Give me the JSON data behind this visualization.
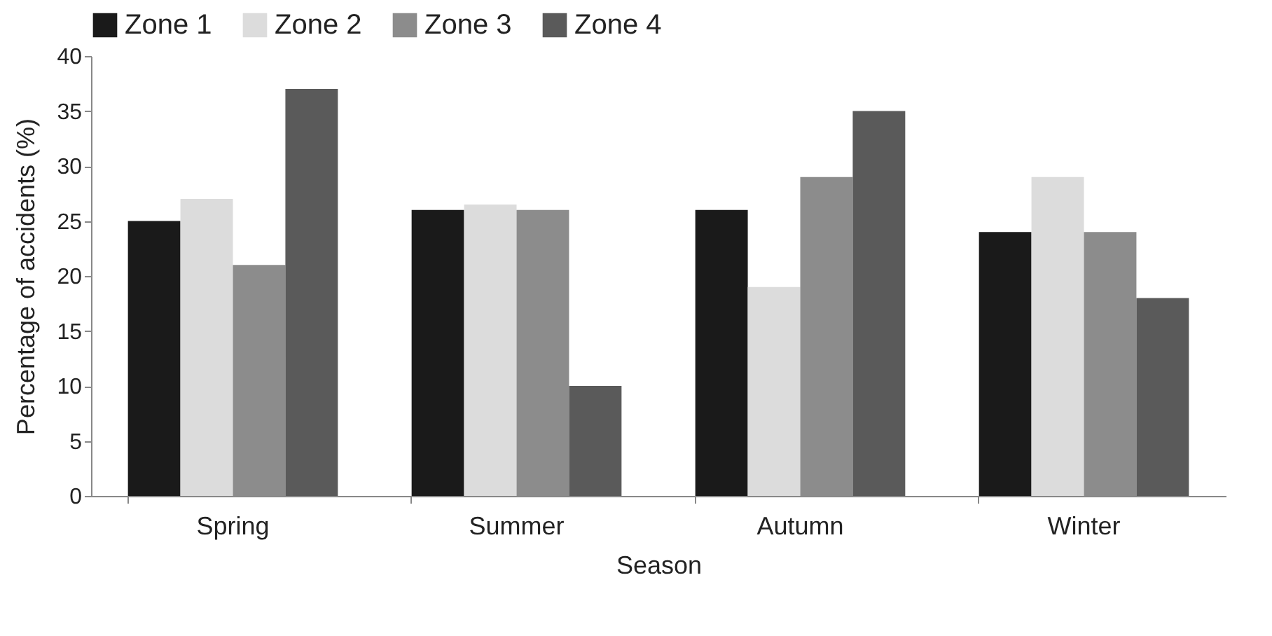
{
  "chart_data": {
    "type": "bar",
    "xlabel": "Season",
    "ylabel": "Percentage of accidents (%)",
    "categories": [
      "Spring",
      "Summer",
      "Autumn",
      "Winter"
    ],
    "series": [
      {
        "name": "Zone 1",
        "color": "#1a1a1a",
        "values": [
          25,
          26,
          26,
          24
        ]
      },
      {
        "name": "Zone 2",
        "color": "#dcdcdc",
        "values": [
          27,
          26.5,
          19,
          29
        ]
      },
      {
        "name": "Zone 3",
        "color": "#8c8c8c",
        "values": [
          21,
          26,
          29,
          24
        ]
      },
      {
        "name": "Zone 4",
        "color": "#5a5a5a",
        "values": [
          37,
          10,
          35,
          18
        ]
      }
    ],
    "ylim": [
      0,
      40
    ],
    "yticks": [
      0,
      5,
      10,
      15,
      20,
      25,
      30,
      35,
      40
    ],
    "grid": false,
    "legend": "top"
  }
}
